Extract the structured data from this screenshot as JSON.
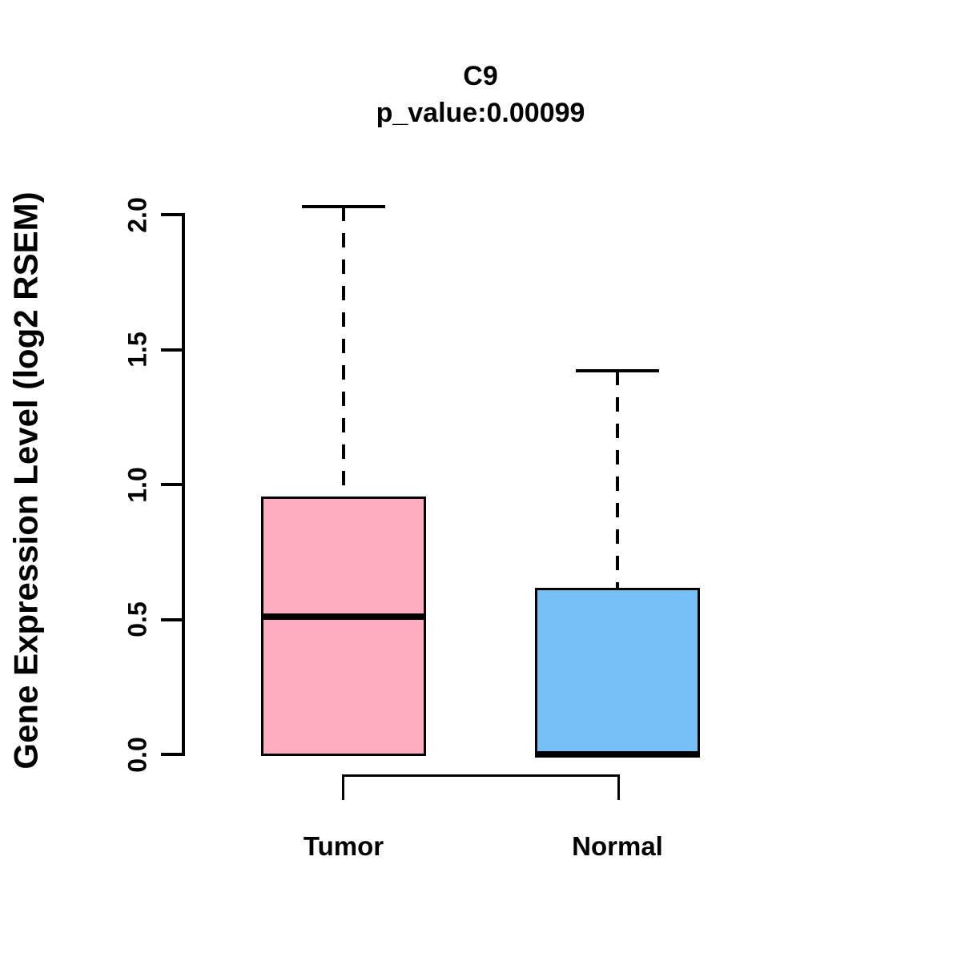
{
  "header": {
    "title": "C9",
    "subtitle": "p_value:0.00099"
  },
  "colors": {
    "tumor_fill": "#FCAEC0",
    "normal_fill": "#76BFF7",
    "line_color": "#000000",
    "background": "#FFFFFF"
  },
  "chart_data": {
    "type": "boxplot",
    "title": "C9",
    "subtitle": "p_value:0.00099",
    "ylabel": "Gene Expression Level (log2 RSEM)",
    "xlabel": "",
    "ylim": [
      0.0,
      2.05
    ],
    "grid": false,
    "legend": "none",
    "yticks": [
      {
        "value": 0.0,
        "label": "0.0"
      },
      {
        "value": 0.5,
        "label": "0.5"
      },
      {
        "value": 1.0,
        "label": "1.0"
      },
      {
        "value": 1.5,
        "label": "1.5"
      },
      {
        "value": 2.0,
        "label": "2.0"
      }
    ],
    "categories": [
      "Tumor",
      "Normal"
    ],
    "groups": [
      {
        "label": "Tumor",
        "fill": "#FCAEC0",
        "whisker_low": 0.0,
        "q1": 0.0,
        "median": 0.51,
        "q3": 0.95,
        "whisker_high": 2.03
      },
      {
        "label": "Normal",
        "fill": "#76BFF7",
        "whisker_low": 0.0,
        "q1": 0.0,
        "median": 0.0,
        "q3": 0.61,
        "whisker_high": 1.42
      }
    ],
    "significance_bracket": {
      "from": "Tumor",
      "to": "Normal"
    }
  }
}
